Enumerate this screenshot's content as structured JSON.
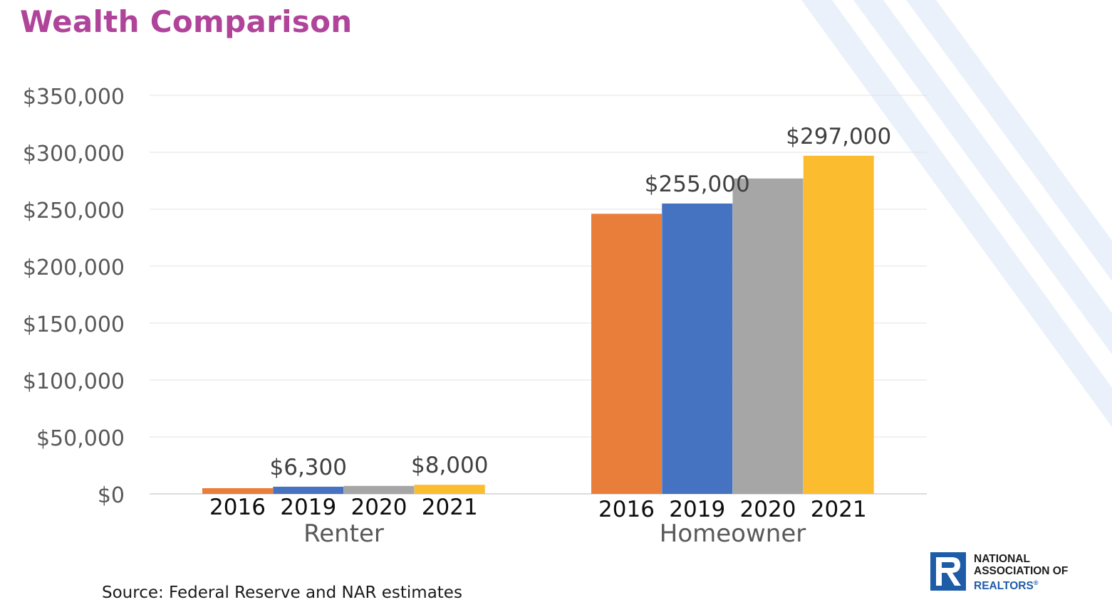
{
  "title": "Wealth Comparison",
  "source": "Source: Federal Reserve and NAR estimates",
  "logo": {
    "line1": "NATIONAL",
    "line2": "ASSOCIATION OF",
    "line3": "REALTORS",
    "mark": "®"
  },
  "colors": {
    "title": "#b0449a",
    "2016": "#e97e3b",
    "2019": "#4673c1",
    "2020": "#a6a6a6",
    "2021": "#fbbd2f",
    "brand_blue": "#1f5ca8"
  },
  "chart_data": {
    "type": "bar",
    "title": "",
    "xlabel": "",
    "ylabel": "",
    "ylim": [
      0,
      350000
    ],
    "yticks": [
      0,
      50000,
      100000,
      150000,
      200000,
      250000,
      300000,
      350000
    ],
    "ytick_labels": [
      "$0",
      "$50,000",
      "$100,000",
      "$150,000",
      "$200,000",
      "$250,000",
      "$300,000",
      "$350,000"
    ],
    "categories": [
      "Renter",
      "Homeowner"
    ],
    "series": [
      {
        "name": "2016",
        "color": "#e97e3b",
        "values": [
          5000,
          246000
        ],
        "data_labels": [
          "",
          ""
        ]
      },
      {
        "name": "2019",
        "color": "#4673c1",
        "values": [
          6300,
          255000
        ],
        "data_labels": [
          "$6,300",
          "$255,000"
        ]
      },
      {
        "name": "2020",
        "color": "#a6a6a6",
        "values": [
          7000,
          277000
        ],
        "data_labels": [
          "",
          ""
        ]
      },
      {
        "name": "2021",
        "color": "#fbbd2f",
        "values": [
          8000,
          297000
        ],
        "data_labels": [
          "$8,000",
          "$297,000"
        ]
      }
    ],
    "grid": true,
    "legend": "none"
  }
}
